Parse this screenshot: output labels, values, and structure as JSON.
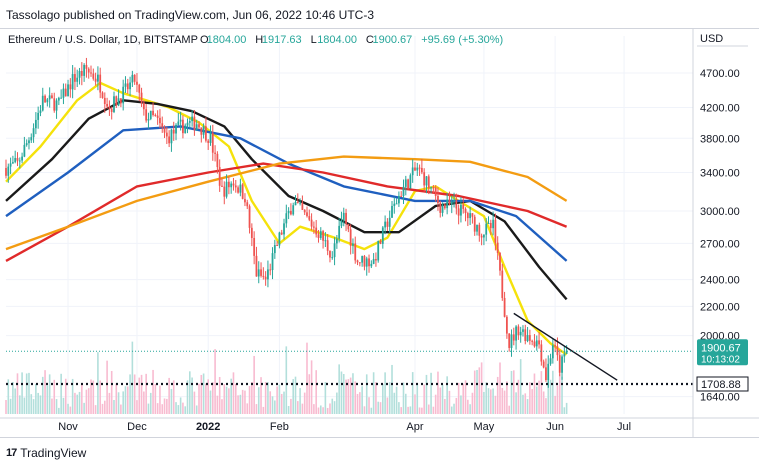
{
  "header": {
    "published_line": "Tassolago published on TradingView.com, Jun 06, 2022 10:46 UTC-3"
  },
  "footer": {
    "brand": "TradingView",
    "logo_glyph": "17"
  },
  "chart_data": {
    "type": "candlestick",
    "legend": {
      "symbol": "Ethereum / U.S. Dollar, 1D, BITSTAMP",
      "open_label": "O",
      "open": "1804.00",
      "high_label": "H",
      "high": "1917.63",
      "low_label": "L",
      "low": "1804.00",
      "close_label": "C",
      "close": "1900.67",
      "change": "+95.69 (+5.30%)"
    },
    "currency": "USD",
    "y_ticks": [
      4700,
      4200,
      3800,
      3400,
      3000,
      2700,
      2400,
      2200,
      2000,
      1640
    ],
    "y_tick_labels": [
      "4700.00",
      "4200.00",
      "3800.00",
      "3400.00",
      "3000.00",
      "2700.00",
      "2400.00",
      "2200.00",
      "2000.00",
      "1640.00"
    ],
    "x_ticks": [
      {
        "date": "2021-11-01",
        "label": "Nov",
        "bold": false
      },
      {
        "date": "2021-12-01",
        "label": "Dec",
        "bold": false
      },
      {
        "date": "2022-01-01",
        "label": "2022",
        "bold": true
      },
      {
        "date": "2022-02-01",
        "label": "Feb",
        "bold": false
      },
      {
        "date": "2022-04-01",
        "label": "Apr",
        "bold": false
      },
      {
        "date": "2022-05-01",
        "label": "May",
        "bold": false
      },
      {
        "date": "2022-06-01",
        "label": "Jun",
        "bold": false
      },
      {
        "date": "2022-07-01",
        "label": "Jul",
        "bold": false
      }
    ],
    "y_scale": "log",
    "y_range": [
      1550,
      5300
    ],
    "x_range": [
      "2021-10-05",
      "2022-07-31"
    ],
    "current_price": {
      "value": 1900.67,
      "label": "1900.67",
      "countdown": "10:13:02",
      "color": "#26a69a"
    },
    "support_line": {
      "value": 1708.88,
      "label": "1708.88"
    },
    "trendline": {
      "start": {
        "date": "2022-05-14",
        "value": 2150
      },
      "end": {
        "date": "2022-06-28",
        "value": 1730
      }
    },
    "colors": {
      "up": "#26a69a",
      "down": "#ef5350",
      "sma_yellow": "#f5e20b",
      "sma_black": "#1a1a1a",
      "sma_blue": "#1f5fbf",
      "sma_red": "#e02a2a",
      "sma_orange": "#f39c12"
    },
    "price_path": [
      {
        "date": "2021-10-05",
        "value": 3450
      },
      {
        "date": "2021-10-10",
        "value": 3500
      },
      {
        "date": "2021-10-15",
        "value": 3800
      },
      {
        "date": "2021-10-21",
        "value": 4300
      },
      {
        "date": "2021-10-28",
        "value": 4250
      },
      {
        "date": "2021-11-03",
        "value": 4600
      },
      {
        "date": "2021-11-09",
        "value": 4750
      },
      {
        "date": "2021-11-14",
        "value": 4600
      },
      {
        "date": "2021-11-19",
        "value": 4200
      },
      {
        "date": "2021-11-25",
        "value": 4400
      },
      {
        "date": "2021-11-30",
        "value": 4600
      },
      {
        "date": "2021-12-04",
        "value": 4100
      },
      {
        "date": "2021-12-09",
        "value": 4050
      },
      {
        "date": "2021-12-14",
        "value": 3800
      },
      {
        "date": "2021-12-20",
        "value": 3950
      },
      {
        "date": "2021-12-27",
        "value": 4000
      },
      {
        "date": "2022-01-02",
        "value": 3800
      },
      {
        "date": "2022-01-07",
        "value": 3200
      },
      {
        "date": "2022-01-12",
        "value": 3300
      },
      {
        "date": "2022-01-17",
        "value": 3150
      },
      {
        "date": "2022-01-22",
        "value": 2450
      },
      {
        "date": "2022-01-26",
        "value": 2400
      },
      {
        "date": "2022-02-01",
        "value": 2750
      },
      {
        "date": "2022-02-07",
        "value": 3100
      },
      {
        "date": "2022-02-12",
        "value": 2950
      },
      {
        "date": "2022-02-18",
        "value": 2800
      },
      {
        "date": "2022-02-24",
        "value": 2600
      },
      {
        "date": "2022-03-01",
        "value": 2950
      },
      {
        "date": "2022-03-07",
        "value": 2550
      },
      {
        "date": "2022-03-14",
        "value": 2550
      },
      {
        "date": "2022-03-20",
        "value": 2900
      },
      {
        "date": "2022-03-26",
        "value": 3200
      },
      {
        "date": "2022-04-02",
        "value": 3450
      },
      {
        "date": "2022-04-06",
        "value": 3300
      },
      {
        "date": "2022-04-12",
        "value": 3050
      },
      {
        "date": "2022-04-18",
        "value": 3050
      },
      {
        "date": "2022-04-24",
        "value": 2950
      },
      {
        "date": "2022-04-30",
        "value": 2800
      },
      {
        "date": "2022-05-05",
        "value": 2850
      },
      {
        "date": "2022-05-09",
        "value": 2300
      },
      {
        "date": "2022-05-12",
        "value": 1950
      },
      {
        "date": "2022-05-16",
        "value": 2050
      },
      {
        "date": "2022-05-20",
        "value": 2000
      },
      {
        "date": "2022-05-25",
        "value": 1950
      },
      {
        "date": "2022-05-28",
        "value": 1750
      },
      {
        "date": "2022-05-31",
        "value": 1950
      },
      {
        "date": "2022-06-03",
        "value": 1800
      },
      {
        "date": "2022-06-06",
        "value": 1900
      }
    ],
    "moving_averages": [
      {
        "color": "#f5e20b",
        "points": [
          {
            "date": "2021-10-05",
            "value": 3300
          },
          {
            "date": "2021-10-20",
            "value": 3700
          },
          {
            "date": "2021-11-05",
            "value": 4300
          },
          {
            "date": "2021-11-15",
            "value": 4550
          },
          {
            "date": "2021-11-25",
            "value": 4400
          },
          {
            "date": "2021-12-05",
            "value": 4300
          },
          {
            "date": "2021-12-15",
            "value": 4200
          },
          {
            "date": "2021-12-28",
            "value": 4000
          },
          {
            "date": "2022-01-10",
            "value": 3700
          },
          {
            "date": "2022-01-20",
            "value": 3100
          },
          {
            "date": "2022-02-01",
            "value": 2700
          },
          {
            "date": "2022-02-10",
            "value": 2850
          },
          {
            "date": "2022-02-25",
            "value": 2750
          },
          {
            "date": "2022-03-10",
            "value": 2650
          },
          {
            "date": "2022-03-20",
            "value": 2750
          },
          {
            "date": "2022-04-01",
            "value": 3200
          },
          {
            "date": "2022-04-10",
            "value": 3250
          },
          {
            "date": "2022-04-20",
            "value": 3100
          },
          {
            "date": "2022-05-01",
            "value": 2950
          },
          {
            "date": "2022-05-10",
            "value": 2500
          },
          {
            "date": "2022-05-20",
            "value": 2100
          },
          {
            "date": "2022-05-30",
            "value": 1950
          },
          {
            "date": "2022-06-06",
            "value": 1880
          }
        ]
      },
      {
        "color": "#1a1a1a",
        "points": [
          {
            "date": "2021-10-05",
            "value": 3100
          },
          {
            "date": "2021-10-25",
            "value": 3550
          },
          {
            "date": "2021-11-10",
            "value": 4050
          },
          {
            "date": "2021-11-25",
            "value": 4300
          },
          {
            "date": "2021-12-10",
            "value": 4250
          },
          {
            "date": "2021-12-25",
            "value": 4150
          },
          {
            "date": "2022-01-08",
            "value": 3950
          },
          {
            "date": "2022-01-20",
            "value": 3550
          },
          {
            "date": "2022-02-05",
            "value": 3150
          },
          {
            "date": "2022-02-20",
            "value": 3000
          },
          {
            "date": "2022-03-10",
            "value": 2800
          },
          {
            "date": "2022-03-25",
            "value": 2800
          },
          {
            "date": "2022-04-10",
            "value": 3050
          },
          {
            "date": "2022-04-25",
            "value": 3100
          },
          {
            "date": "2022-05-10",
            "value": 2900
          },
          {
            "date": "2022-05-25",
            "value": 2500
          },
          {
            "date": "2022-06-06",
            "value": 2250
          }
        ]
      },
      {
        "color": "#1f5fbf",
        "points": [
          {
            "date": "2021-10-05",
            "value": 2950
          },
          {
            "date": "2021-11-01",
            "value": 3400
          },
          {
            "date": "2021-11-25",
            "value": 3900
          },
          {
            "date": "2021-12-20",
            "value": 3950
          },
          {
            "date": "2022-01-15",
            "value": 3800
          },
          {
            "date": "2022-02-05",
            "value": 3500
          },
          {
            "date": "2022-03-01",
            "value": 3250
          },
          {
            "date": "2022-04-01",
            "value": 3100
          },
          {
            "date": "2022-04-25",
            "value": 3100
          },
          {
            "date": "2022-05-15",
            "value": 2950
          },
          {
            "date": "2022-06-06",
            "value": 2550
          }
        ]
      },
      {
        "color": "#e02a2a",
        "points": [
          {
            "date": "2021-10-05",
            "value": 2550
          },
          {
            "date": "2021-11-01",
            "value": 2850
          },
          {
            "date": "2021-12-01",
            "value": 3250
          },
          {
            "date": "2022-01-01",
            "value": 3400
          },
          {
            "date": "2022-01-25",
            "value": 3500
          },
          {
            "date": "2022-02-20",
            "value": 3400
          },
          {
            "date": "2022-03-20",
            "value": 3250
          },
          {
            "date": "2022-04-20",
            "value": 3150
          },
          {
            "date": "2022-05-20",
            "value": 3000
          },
          {
            "date": "2022-06-06",
            "value": 2850
          }
        ]
      },
      {
        "color": "#f39c12",
        "points": [
          {
            "date": "2021-10-05",
            "value": 2650
          },
          {
            "date": "2021-11-01",
            "value": 2850
          },
          {
            "date": "2021-12-01",
            "value": 3100
          },
          {
            "date": "2022-01-01",
            "value": 3300
          },
          {
            "date": "2022-02-01",
            "value": 3500
          },
          {
            "date": "2022-03-01",
            "value": 3580
          },
          {
            "date": "2022-04-01",
            "value": 3550
          },
          {
            "date": "2022-04-25",
            "value": 3520
          },
          {
            "date": "2022-05-20",
            "value": 3350
          },
          {
            "date": "2022-06-06",
            "value": 3100
          }
        ]
      }
    ]
  }
}
